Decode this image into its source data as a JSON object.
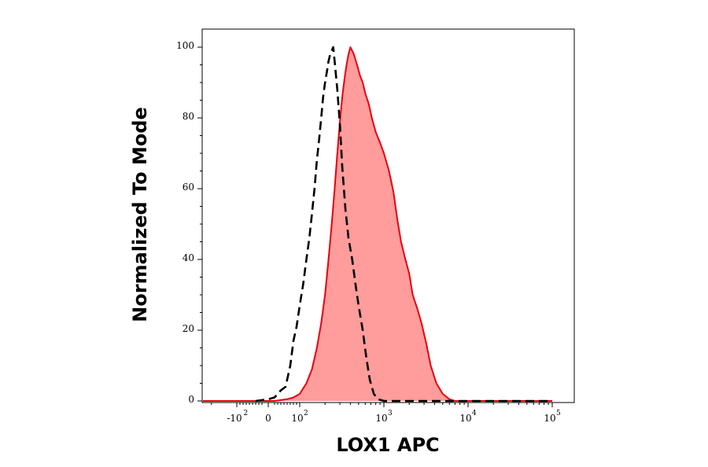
{
  "chart_data": {
    "type": "area",
    "xlabel": "LOX1 APC",
    "ylabel": "Normalized To Mode",
    "x_scale": "biexponential",
    "x_tick_labels": [
      {
        "base": "-10",
        "exp": "2",
        "value": -100
      },
      {
        "base": "0",
        "exp": "",
        "value": 0
      },
      {
        "base": "10",
        "exp": "2",
        "value": 100
      },
      {
        "base": "10",
        "exp": "3",
        "value": 1000
      },
      {
        "base": "10",
        "exp": "4",
        "value": 10000
      },
      {
        "base": "10",
        "exp": "5",
        "value": 100000
      }
    ],
    "y_ticks": [
      "0",
      "20",
      "40",
      "60",
      "80",
      "100"
    ],
    "ylim": [
      0,
      100
    ],
    "grid": false,
    "series": [
      {
        "style": "dashed",
        "color": "#000000",
        "fill": "none",
        "points": [
          [
            -40,
            0
          ],
          [
            0,
            0.5
          ],
          [
            20,
            1
          ],
          [
            40,
            3
          ],
          [
            55,
            4
          ],
          [
            70,
            10
          ],
          [
            80,
            17
          ],
          [
            90,
            21
          ],
          [
            100,
            27
          ],
          [
            110,
            33
          ],
          [
            120,
            40
          ],
          [
            130,
            46
          ],
          [
            140,
            53
          ],
          [
            150,
            60
          ],
          [
            160,
            68
          ],
          [
            170,
            74
          ],
          [
            180,
            80
          ],
          [
            190,
            86
          ],
          [
            200,
            90
          ],
          [
            210,
            93
          ],
          [
            220,
            96
          ],
          [
            230,
            98
          ],
          [
            240,
            99
          ],
          [
            250,
            100
          ],
          [
            260,
            96
          ],
          [
            280,
            88
          ],
          [
            300,
            78
          ],
          [
            320,
            66
          ],
          [
            350,
            54
          ],
          [
            380,
            46
          ],
          [
            420,
            40
          ],
          [
            460,
            33
          ],
          [
            500,
            27
          ],
          [
            560,
            20
          ],
          [
            620,
            12
          ],
          [
            680,
            6
          ],
          [
            760,
            2
          ],
          [
            850,
            0.5
          ],
          [
            1000,
            0
          ],
          [
            100000,
            0
          ]
        ]
      },
      {
        "style": "solid",
        "color": "#e8000c",
        "fill": "#ff9c9c",
        "points": [
          [
            -400,
            0
          ],
          [
            20,
            0
          ],
          [
            60,
            0.5
          ],
          [
            80,
            1
          ],
          [
            100,
            2
          ],
          [
            120,
            5
          ],
          [
            140,
            9
          ],
          [
            160,
            15
          ],
          [
            180,
            22
          ],
          [
            200,
            30
          ],
          [
            220,
            40
          ],
          [
            240,
            50
          ],
          [
            260,
            60
          ],
          [
            280,
            70
          ],
          [
            300,
            79
          ],
          [
            320,
            86
          ],
          [
            340,
            91
          ],
          [
            360,
            95
          ],
          [
            380,
            98
          ],
          [
            400,
            100
          ],
          [
            440,
            98
          ],
          [
            480,
            95
          ],
          [
            520,
            92
          ],
          [
            560,
            90
          ],
          [
            600,
            87
          ],
          [
            660,
            84
          ],
          [
            720,
            80
          ],
          [
            800,
            76
          ],
          [
            900,
            73
          ],
          [
            1000,
            70
          ],
          [
            1150,
            65
          ],
          [
            1300,
            59
          ],
          [
            1450,
            51
          ],
          [
            1600,
            45
          ],
          [
            1800,
            40
          ],
          [
            2000,
            36
          ],
          [
            2200,
            30
          ],
          [
            2500,
            26
          ],
          [
            2800,
            22
          ],
          [
            3200,
            16
          ],
          [
            3600,
            10
          ],
          [
            4200,
            5
          ],
          [
            5000,
            2
          ],
          [
            6000,
            0.5
          ],
          [
            7000,
            0
          ],
          [
            100000,
            0
          ]
        ]
      }
    ]
  }
}
